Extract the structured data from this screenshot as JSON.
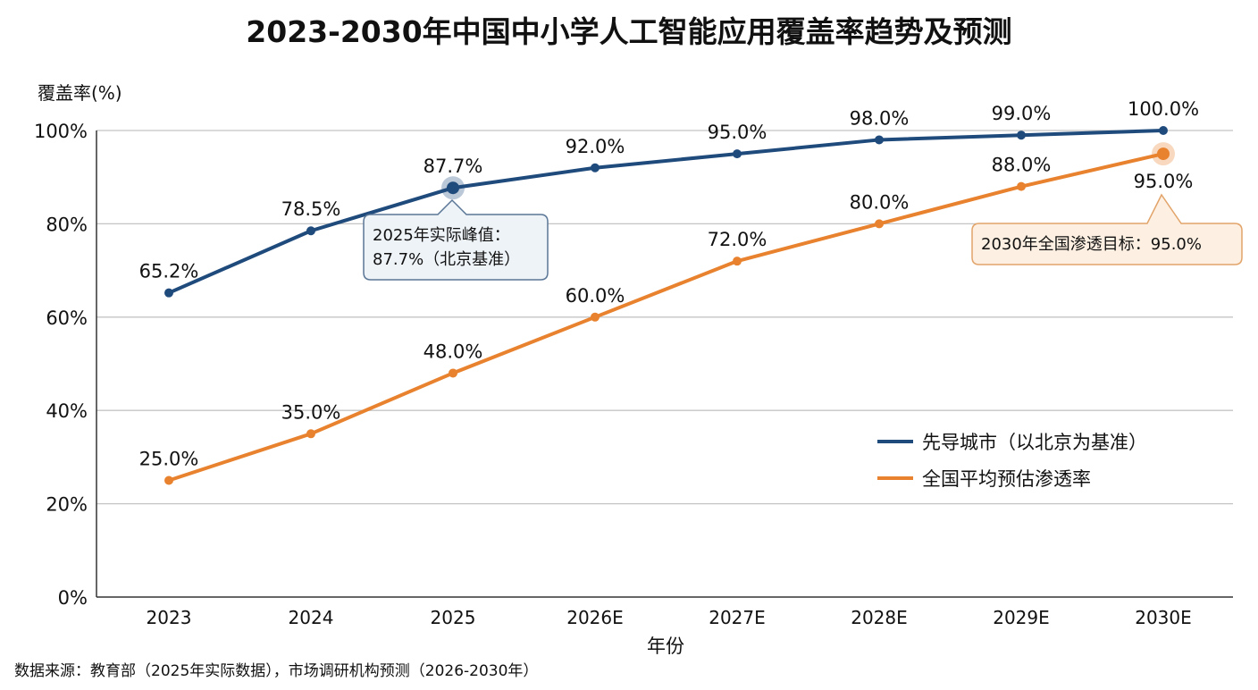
{
  "chart_data": {
    "type": "line",
    "title": "2023-2030年中国中小学人工智能应用覆盖率趋势及预测",
    "ylabel": "覆盖率(%)",
    "xlabel": "年份",
    "categories": [
      "2023",
      "2024",
      "2025",
      "2026E",
      "2027E",
      "2028E",
      "2029E",
      "2030E"
    ],
    "ylim": [
      0,
      100
    ],
    "yticks": [
      "0%",
      "20%",
      "40%",
      "60%",
      "80%",
      "100%"
    ],
    "grid": true,
    "legend_position": "center-right",
    "series": [
      {
        "name": "先导城市（以北京为基准）",
        "color": "#1f4a7c",
        "values": [
          65.2,
          78.5,
          87.7,
          92.0,
          95.0,
          98.0,
          99.0,
          100.0
        ],
        "labels": [
          "65.2%",
          "78.5%",
          "87.7%",
          "92.0%",
          "95.0%",
          "98.0%",
          "99.0%",
          "100.0%"
        ]
      },
      {
        "name": "全国平均预估渗透率",
        "color": "#e8822e",
        "values": [
          25.0,
          35.0,
          48.0,
          60.0,
          72.0,
          80.0,
          88.0,
          95.0
        ],
        "labels": [
          "25.0%",
          "35.0%",
          "48.0%",
          "60.0%",
          "72.0%",
          "80.0%",
          "88.0%",
          "95.0%"
        ]
      }
    ],
    "annotations": [
      {
        "lines": [
          "2025年实际峰值：",
          "87.7%（北京基准）"
        ],
        "series": 0,
        "point": 2
      },
      {
        "lines": [
          "2030年全国渗透目标：95.0%"
        ],
        "series": 1,
        "point": 7
      }
    ],
    "source": "数据来源：教育部（2025年实际数据），市场调研机构预测（2026-2030年）"
  }
}
